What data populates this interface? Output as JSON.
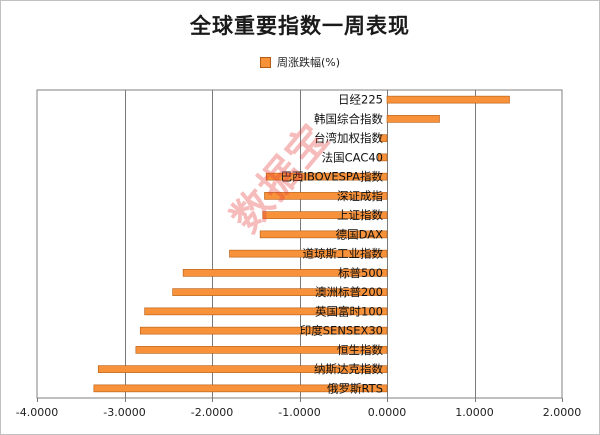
{
  "chart_data": {
    "type": "bar",
    "orientation": "horizontal",
    "title": "全球重要指数一周表现",
    "legend_position": "top",
    "xlim": [
      -4.0,
      2.0
    ],
    "x_ticks": [
      "-4.0000",
      "-3.0000",
      "-2.0000",
      "-1.0000",
      "0.0000",
      "1.0000",
      "2.0000"
    ],
    "x_tick_values": [
      -4,
      -3,
      -2,
      -1,
      0,
      1,
      2
    ],
    "grid": "vertical",
    "bar_color": "#F7923A",
    "bar_border_color": "#B45A12",
    "series": [
      {
        "name": "周涨跌幅(%)",
        "categories": [
          "日经225",
          "韩国综合指数",
          "台湾加权指数",
          "法国CAC40",
          "巴西IBOVESPA指数",
          "深证成指",
          "上证指数",
          "德国DAX",
          "道琼斯工业指数",
          "标普500",
          "澳洲标普200",
          "英国富时100",
          "印度SENSEX30",
          "恒生指数",
          "纳斯达克指数",
          "俄罗斯RTS"
        ],
        "values": [
          1.4,
          0.6,
          -0.08,
          -0.1,
          -1.38,
          -1.4,
          -1.42,
          -1.45,
          -1.8,
          -2.33,
          -2.45,
          -2.77,
          -2.82,
          -2.87,
          -3.3,
          -3.35
        ]
      }
    ]
  },
  "watermark_text": "数据宝"
}
